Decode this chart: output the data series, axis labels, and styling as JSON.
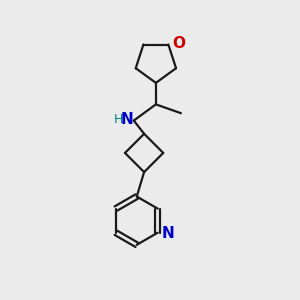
{
  "bg_color": "#ebebeb",
  "bond_color": "#1a1a1a",
  "o_color": "#cc0000",
  "n_color": "#0000cc",
  "nh_color": "#008080",
  "line_width": 1.6,
  "font_size": 10,
  "figsize": [
    3.0,
    3.0
  ],
  "dpi": 100,
  "xlim": [
    0,
    10
  ],
  "ylim": [
    0,
    10
  ]
}
